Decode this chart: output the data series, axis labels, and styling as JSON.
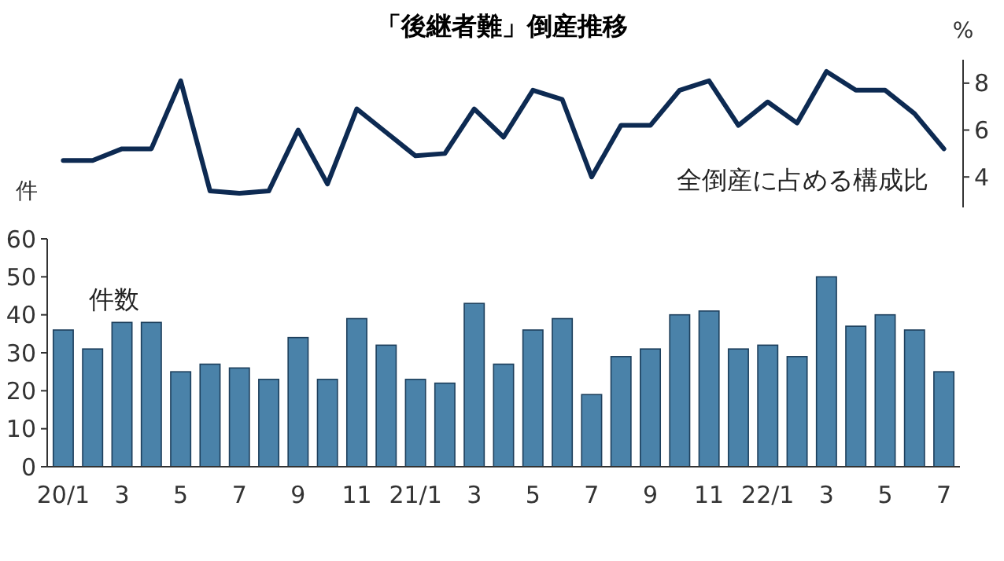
{
  "chart_data": [
    {
      "type": "line",
      "title": "「後継者難」倒産推移",
      "ylabel": "%",
      "annotations": [
        "全倒産に占める構成比"
      ],
      "categories": [
        null,
        null,
        null,
        null,
        null,
        null,
        null,
        null,
        null,
        null,
        null,
        null,
        null,
        null,
        null,
        null,
        null,
        null,
        null,
        null,
        null,
        null,
        null,
        null,
        null,
        null,
        null,
        null,
        null,
        null,
        null
      ],
      "series": [
        {
          "color": "#0d2a52",
          "values": [
            4.7,
            4.7,
            5.2,
            5.2,
            8.1,
            3.4,
            3.3,
            3.4,
            6.0,
            3.7,
            6.9,
            5.9,
            4.9,
            5.0,
            6.9,
            5.7,
            7.7,
            7.3,
            4.0,
            6.2,
            6.2,
            7.7,
            8.1,
            6.2,
            7.2,
            6.3,
            8.5,
            7.7,
            7.7,
            6.7,
            5.2
          ]
        }
      ],
      "ylim": [
        2.7,
        9
      ],
      "yticks": [
        4,
        6,
        8
      ],
      "marker": "none",
      "grid": false
    },
    {
      "type": "bar",
      "ylabel": "件",
      "annotations": [
        "件数"
      ],
      "categories": [
        "20/1",
        null,
        "3",
        null,
        "5",
        null,
        "7",
        null,
        "9",
        null,
        "11",
        null,
        "21/1",
        null,
        "3",
        null,
        "5",
        null,
        "7",
        null,
        "9",
        null,
        "11",
        null,
        "22/1",
        null,
        "3",
        null,
        "5",
        null,
        "7"
      ],
      "series": [
        {
          "color": "#4a82a9",
          "values": [
            36,
            31,
            38,
            38,
            25,
            27,
            26,
            23,
            34,
            23,
            39,
            32,
            23,
            22,
            43,
            27,
            36,
            39,
            19,
            29,
            31,
            40,
            41,
            31,
            32,
            29,
            50,
            37,
            40,
            36,
            25
          ]
        }
      ],
      "ylim": [
        0,
        60
      ],
      "yticks": [
        0,
        10,
        20,
        30,
        40,
        50,
        60
      ],
      "grid": false
    }
  ]
}
